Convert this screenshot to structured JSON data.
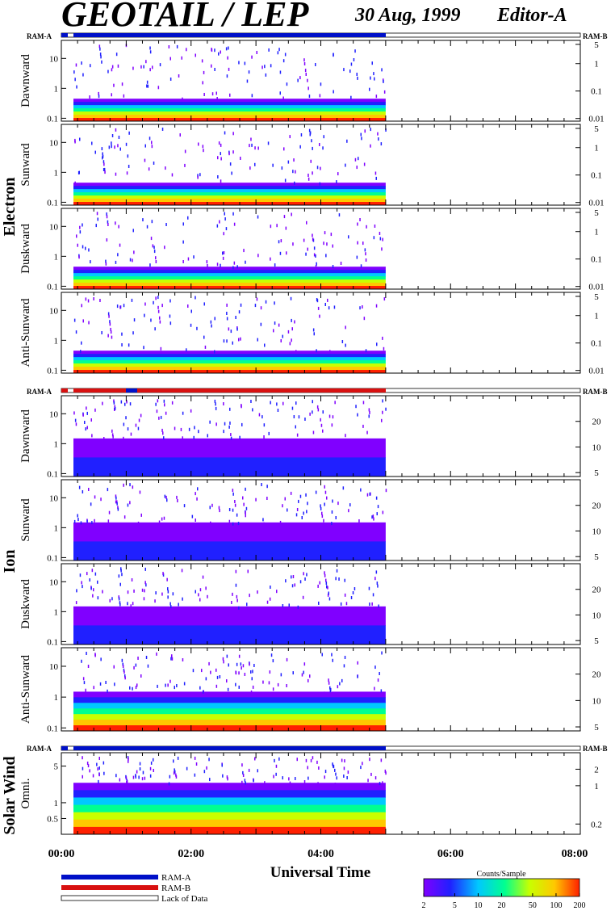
{
  "header": {
    "title": "GEOTAIL / LEP",
    "date": "30 Aug, 1999",
    "editor": "Editor-A"
  },
  "status_bar_labels": {
    "left": "RAM-A",
    "right": "RAM-B"
  },
  "groups": [
    {
      "id": "electron",
      "label": "Electron"
    },
    {
      "id": "ion",
      "label": "Ion"
    },
    {
      "id": "solarwind",
      "label": "Solar Wind"
    }
  ],
  "legend": {
    "items": [
      {
        "label": "RAM-A",
        "color": "#0010c8"
      },
      {
        "label": "RAM-B",
        "color": "#d81010"
      },
      {
        "label": "Lack of Data",
        "color": "#ffffff"
      }
    ]
  },
  "colorbar": {
    "title": "Counts/Sample",
    "ticks": [
      "2",
      "5",
      "10",
      "20",
      "50",
      "100",
      "200"
    ]
  },
  "colors": {
    "ram_a": "#0010c8",
    "ram_b": "#d81010",
    "spectrum": [
      "#8000ff",
      "#2020ff",
      "#00c8ff",
      "#00ff90",
      "#c8ff00",
      "#ffc800",
      "#ff2000"
    ]
  },
  "chart_data": {
    "type": "heatmap",
    "xlabel": "Universal Time",
    "x_ticks": [
      "00:00",
      "02:00",
      "04:00",
      "06:00",
      "08:00"
    ],
    "x_range_hours": [
      0,
      8
    ],
    "data_end_hours": 5.0,
    "colorbar_range": [
      2,
      200
    ],
    "panels": [
      {
        "group": "electron",
        "ylabel": "Dawnward",
        "y_ticks": [
          "0.1",
          "1",
          "10"
        ],
        "y_range": [
          0.08,
          40
        ],
        "right_ticks": [
          "0.01",
          "0.1",
          "1",
          "5"
        ],
        "right_range": [
          0.008,
          7
        ]
      },
      {
        "group": "electron",
        "ylabel": "Sunward",
        "y_ticks": [
          "0.1",
          "1",
          "10"
        ],
        "y_range": [
          0.08,
          40
        ],
        "right_ticks": [
          "0.01",
          "0.1",
          "1",
          "5"
        ],
        "right_range": [
          0.008,
          7
        ]
      },
      {
        "group": "electron",
        "ylabel": "Duskward",
        "y_ticks": [
          "0.1",
          "1",
          "10"
        ],
        "y_range": [
          0.08,
          40
        ],
        "right_ticks": [
          "0.01",
          "0.1",
          "1",
          "5"
        ],
        "right_range": [
          0.008,
          7
        ]
      },
      {
        "group": "electron",
        "ylabel": "Anti-Sunward",
        "y_ticks": [
          "0.1",
          "1",
          "10"
        ],
        "y_range": [
          0.08,
          40
        ],
        "right_ticks": [
          "0.01",
          "0.1",
          "1",
          "5"
        ],
        "right_range": [
          0.008,
          7
        ]
      },
      {
        "group": "ion",
        "ylabel": "Dawnward",
        "y_ticks": [
          "0.1",
          "1",
          "10"
        ],
        "y_range": [
          0.08,
          40
        ],
        "right_ticks": [
          "5",
          "10",
          "20"
        ],
        "right_range": [
          4.5,
          40
        ]
      },
      {
        "group": "ion",
        "ylabel": "Sunward",
        "y_ticks": [
          "0.1",
          "1",
          "10"
        ],
        "y_range": [
          0.08,
          40
        ],
        "right_ticks": [
          "5",
          "10",
          "20"
        ],
        "right_range": [
          4.5,
          40
        ]
      },
      {
        "group": "ion",
        "ylabel": "Duskward",
        "y_ticks": [
          "0.1",
          "1",
          "10"
        ],
        "y_range": [
          0.08,
          40
        ],
        "right_ticks": [
          "5",
          "10",
          "20"
        ],
        "right_range": [
          4.5,
          40
        ]
      },
      {
        "group": "ion",
        "ylabel": "Anti-Sunward",
        "y_ticks": [
          "0.1",
          "1",
          "10"
        ],
        "y_range": [
          0.08,
          40
        ],
        "right_ticks": [
          "5",
          "10",
          "20"
        ],
        "right_range": [
          4.5,
          40
        ]
      },
      {
        "group": "solarwind",
        "ylabel": "Omni.",
        "y_ticks": [
          "0.5",
          "1",
          "5"
        ],
        "y_range": [
          0.25,
          9
        ],
        "right_ticks": [
          "0.2",
          "1",
          "2"
        ],
        "right_range": [
          0.13,
          4
        ]
      }
    ]
  }
}
